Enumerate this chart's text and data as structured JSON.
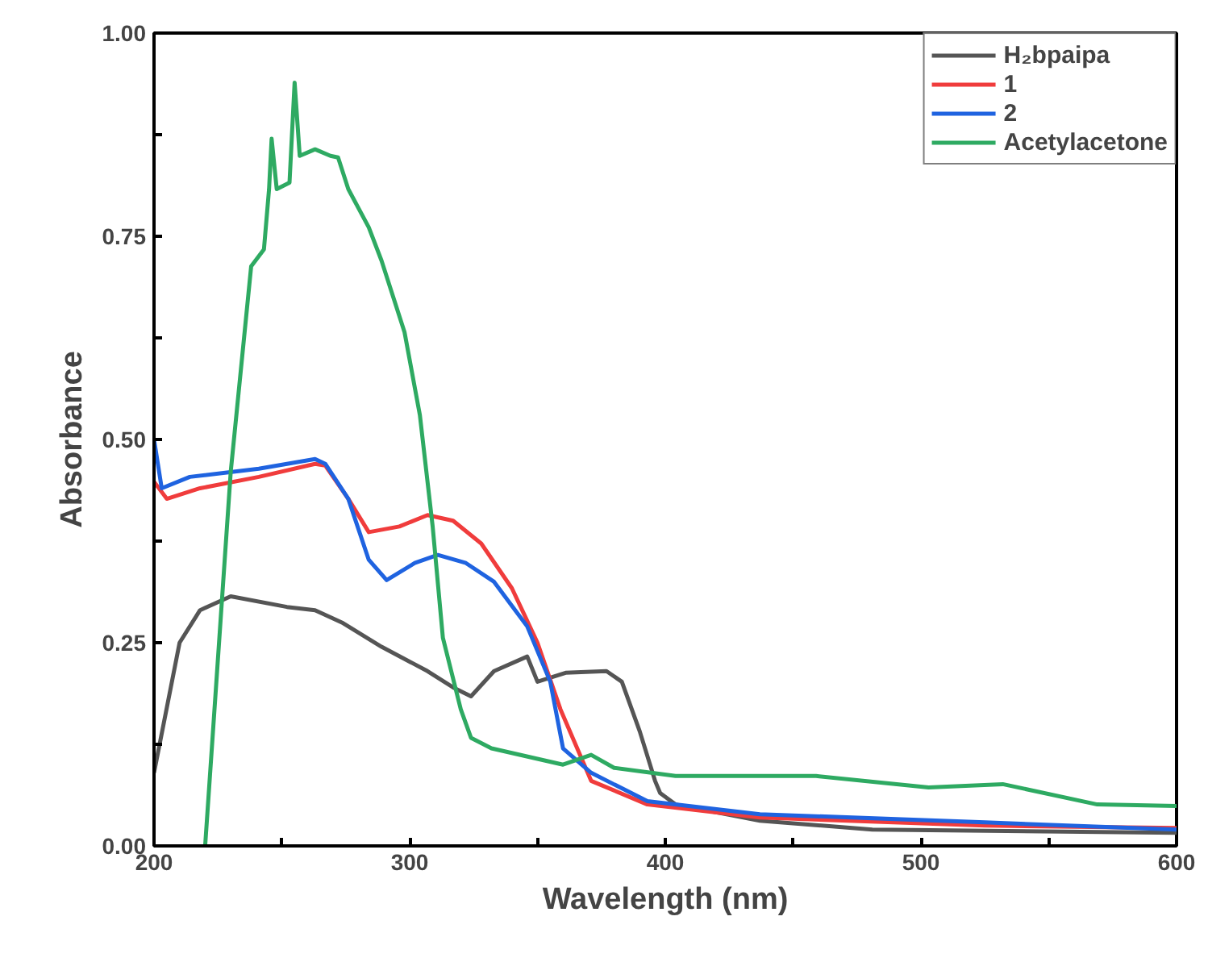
{
  "chart_data": {
    "type": "line",
    "xlabel": "Wavelength (nm)",
    "ylabel": "Absorbance",
    "xlim": [
      200,
      600
    ],
    "ylim": [
      0,
      1
    ],
    "xticks": [
      200,
      {
        "value": 250,
        "label": null
      },
      300,
      {
        "value": 350,
        "label": null
      },
      400,
      {
        "value": 450,
        "label": null
      },
      500,
      {
        "value": 550,
        "label": null
      },
      600
    ],
    "yticks": [
      {
        "value": 0,
        "label": "0.00"
      },
      {
        "value": 0.125,
        "label": null
      },
      {
        "value": 0.25,
        "label": "0.25"
      },
      {
        "value": 0.375,
        "label": null
      },
      {
        "value": 0.5,
        "label": "0.50"
      },
      {
        "value": 0.625,
        "label": null
      },
      {
        "value": 0.75,
        "label": "0.75"
      },
      {
        "value": 0.875,
        "label": null
      },
      {
        "value": 1,
        "label": "1.00"
      }
    ],
    "grid": false,
    "legend": "top right",
    "line_style": "solid",
    "series": [
      {
        "name": "H₂bpaipa",
        "color": "#555555",
        "x": [
          200,
          210,
          218,
          230,
          252,
          263,
          274,
          289,
          307,
          317,
          324,
          333,
          346,
          350,
          361,
          377,
          383,
          390,
          396,
          398,
          404,
          437,
          481,
          600
        ],
        "values": [
          0.09,
          0.25,
          0.29,
          0.307,
          0.294,
          0.29,
          0.274,
          0.245,
          0.215,
          0.195,
          0.184,
          0.215,
          0.233,
          0.202,
          0.213,
          0.215,
          0.202,
          0.141,
          0.08,
          0.065,
          0.051,
          0.031,
          0.02,
          0.016
        ]
      },
      {
        "name": "1",
        "color": "#f03c3c",
        "x": [
          200,
          205,
          218,
          241,
          263,
          267,
          276,
          284,
          296,
          307,
          317,
          328,
          340,
          350,
          359,
          371,
          393,
          437,
          525,
          600
        ],
        "values": [
          0.448,
          0.427,
          0.44,
          0.454,
          0.47,
          0.468,
          0.427,
          0.386,
          0.393,
          0.407,
          0.4,
          0.372,
          0.317,
          0.25,
          0.168,
          0.08,
          0.051,
          0.035,
          0.025,
          0.022
        ]
      },
      {
        "name": "2",
        "color": "#1f63e0",
        "x": [
          200,
          203,
          214,
          241,
          263,
          267,
          276,
          284,
          291,
          302,
          311,
          322,
          333,
          346,
          355,
          360,
          371,
          393,
          437,
          525,
          600
        ],
        "values": [
          0.5,
          0.44,
          0.454,
          0.464,
          0.476,
          0.47,
          0.427,
          0.352,
          0.327,
          0.348,
          0.358,
          0.348,
          0.325,
          0.27,
          0.202,
          0.12,
          0.09,
          0.055,
          0.039,
          0.029,
          0.02
        ]
      },
      {
        "name": "Acetylacetone",
        "color": "#2eaa62",
        "x": [
          220,
          230,
          238,
          243,
          245,
          246,
          248,
          253,
          255,
          257,
          263,
          269,
          272,
          276,
          284,
          289,
          298,
          304,
          309,
          313,
          320,
          324,
          332,
          360,
          371,
          380,
          404,
          459,
          503,
          532,
          569,
          600
        ],
        "values": [
          0,
          0.46,
          0.713,
          0.734,
          0.808,
          0.87,
          0.808,
          0.816,
          0.939,
          0.849,
          0.857,
          0.849,
          0.847,
          0.808,
          0.761,
          0.72,
          0.632,
          0.53,
          0.393,
          0.256,
          0.168,
          0.133,
          0.12,
          0.1,
          0.112,
          0.096,
          0.086,
          0.086,
          0.072,
          0.076,
          0.051,
          0.049
        ]
      }
    ]
  }
}
